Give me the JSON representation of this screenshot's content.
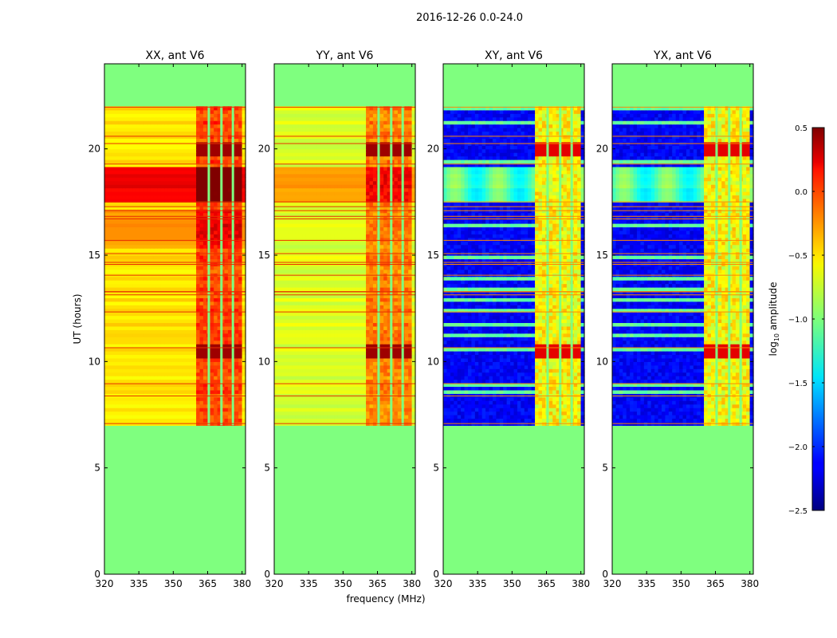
{
  "figure_title": "2016-12-26 0.0-24.0",
  "colors": {
    "background": "#ffffff",
    "flagged": "#7fff7f",
    "frame": "#000000"
  },
  "chart_data": [
    {
      "type": "heatmap",
      "title": "XX, ant V6",
      "ylabel": "UT (hours)",
      "xlabel": "",
      "xlim": [
        320,
        381.5
      ],
      "ylim": [
        0,
        24
      ],
      "xticks": [
        320,
        335,
        350,
        365,
        380
      ],
      "yticks": [
        0,
        5,
        10,
        15,
        20
      ],
      "flagged_hours": [
        [
          0,
          7
        ],
        [
          22,
          24
        ]
      ],
      "bright_channel_band_MHz": [
        359.5,
        379.5
      ],
      "flagged_channel_lines_MHz": [
        365.5,
        371.0,
        376.0
      ],
      "bright_time_bands_hours": [
        [
          10.2,
          10.9
        ],
        [
          19.7,
          20.4
        ]
      ]
    },
    {
      "type": "heatmap",
      "title": "YY, ant V6",
      "ylabel": "",
      "xlabel": "frequency (MHz)",
      "xlim": [
        320,
        381.5
      ],
      "ylim": [
        0,
        24
      ],
      "xticks": [
        320,
        335,
        350,
        365,
        380
      ],
      "yticks": [
        0,
        5,
        10,
        15,
        20
      ],
      "flagged_hours": [
        [
          0,
          7
        ],
        [
          22,
          24
        ]
      ],
      "bright_channel_band_MHz": [
        359.5,
        379.5
      ],
      "flagged_channel_lines_MHz": [
        365.5,
        371.0,
        376.0
      ],
      "bright_time_bands_hours": [
        [
          10.2,
          10.9
        ],
        [
          19.7,
          20.4
        ]
      ]
    },
    {
      "type": "heatmap",
      "title": "XY, ant V6",
      "ylabel": "",
      "xlabel": "",
      "xlim": [
        320,
        381.5
      ],
      "ylim": [
        0,
        24
      ],
      "xticks": [
        320,
        335,
        350,
        365,
        380
      ],
      "yticks": [
        0,
        5,
        10,
        15,
        20
      ],
      "flagged_hours": [
        [
          0,
          7
        ],
        [
          22,
          24
        ]
      ],
      "bright_channel_band_MHz": [
        359.5,
        379.5
      ],
      "flagged_channel_lines_MHz": [
        365.5,
        371.0,
        376.0
      ],
      "bright_time_bands_hours": [
        [
          10.2,
          10.9
        ],
        [
          19.7,
          20.4
        ]
      ]
    },
    {
      "type": "heatmap",
      "title": "YX, ant V6",
      "ylabel": "",
      "xlabel": "",
      "xlim": [
        320,
        381.5
      ],
      "ylim": [
        0,
        24
      ],
      "xticks": [
        320,
        335,
        350,
        365,
        380
      ],
      "yticks": [
        0,
        5,
        10,
        15,
        20
      ],
      "flagged_hours": [
        [
          0,
          7
        ],
        [
          22,
          24
        ]
      ],
      "bright_channel_band_MHz": [
        359.5,
        379.5
      ],
      "flagged_channel_lines_MHz": [
        365.5,
        371.0,
        376.0
      ],
      "bright_time_bands_hours": [
        [
          10.2,
          10.9
        ],
        [
          19.7,
          20.4
        ]
      ]
    }
  ],
  "colorbar": {
    "label_prefix": "log",
    "label_sub": "10",
    "label_suffix": " amplitude",
    "min": -2.5,
    "max": 0.5,
    "ticks": [
      0.5,
      0.0,
      -0.5,
      -1.0,
      -1.5,
      -2.0,
      -2.5
    ],
    "tick_labels": [
      "0.5",
      "0.0",
      "−0.5",
      "−1.0",
      "−1.5",
      "−2.0",
      "−2.5"
    ],
    "colormap": "jet"
  }
}
